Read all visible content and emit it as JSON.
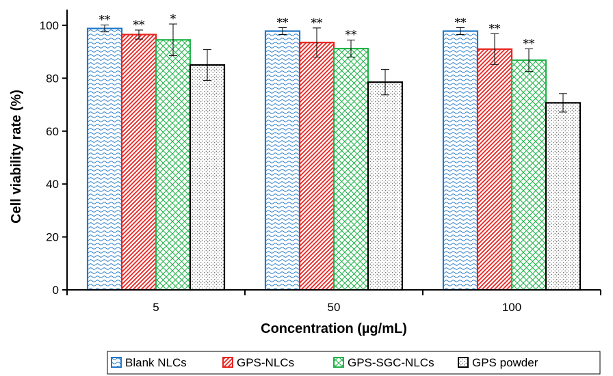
{
  "chart_data": {
    "type": "bar",
    "xlabel": "Concentration (µg/mL)",
    "ylabel": "Cell viability rate (%)",
    "categories": [
      "5",
      "50",
      "100"
    ],
    "ylim": [
      0,
      100
    ],
    "yticks": [
      0,
      20,
      40,
      60,
      80,
      100
    ],
    "grid": false,
    "legend_position": "bottom",
    "series": [
      {
        "name": "Blank NLCs",
        "color": "#1f77c8",
        "pattern": "waves",
        "values": [
          98.8,
          97.8,
          97.8
        ],
        "errors": [
          1.3,
          1.3,
          1.3
        ],
        "significance": [
          "**",
          "**",
          "**"
        ]
      },
      {
        "name": "GPS-NLCs",
        "color": "#e8231f",
        "pattern": "diagonal-lines",
        "values": [
          96.5,
          93.5,
          91.0
        ],
        "errors": [
          1.7,
          5.5,
          5.8
        ],
        "significance": [
          "**",
          "**",
          "**"
        ]
      },
      {
        "name": "GPS-SGC-NLCs",
        "color": "#21b34a",
        "pattern": "crosshatch",
        "values": [
          94.5,
          91.2,
          86.8
        ],
        "errors": [
          6.0,
          3.2,
          4.3
        ],
        "significance": [
          "*",
          "**",
          "**"
        ]
      },
      {
        "name": "GPS powder",
        "color": "#000000",
        "pattern": "dots",
        "values": [
          85.0,
          78.5,
          70.7
        ],
        "errors": [
          5.8,
          4.8,
          3.5
        ],
        "significance": [
          "",
          "",
          ""
        ]
      }
    ]
  }
}
